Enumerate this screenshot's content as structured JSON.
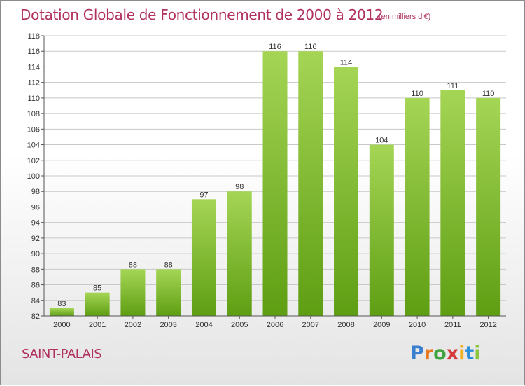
{
  "header": {
    "title": "Dotation Globale de Fonctionnement de 2000 à 2012",
    "unit": "(en milliers d'€)"
  },
  "footer": {
    "place": "SAINT-PALAIS",
    "logo_letters": [
      "P",
      "r",
      "o",
      "x",
      "i",
      "t",
      "i"
    ]
  },
  "colors": {
    "title": "#b03060",
    "bar_light": "#a5d555",
    "bar_dark": "#5e9e13",
    "gridline": "#c8c8c8"
  },
  "chart_data": {
    "type": "bar",
    "categories": [
      "2000",
      "2001",
      "2002",
      "2003",
      "2004",
      "2005",
      "2006",
      "2007",
      "2008",
      "2009",
      "2010",
      "2011",
      "2012"
    ],
    "values": [
      83,
      85,
      88,
      88,
      97,
      98,
      116,
      116,
      114,
      104,
      110,
      111,
      110
    ],
    "ylim": [
      82,
      118
    ],
    "yticks": [
      82,
      84,
      86,
      88,
      90,
      92,
      94,
      96,
      98,
      100,
      102,
      104,
      106,
      108,
      110,
      112,
      114,
      116,
      118
    ],
    "grid": true,
    "data_labels": true
  }
}
